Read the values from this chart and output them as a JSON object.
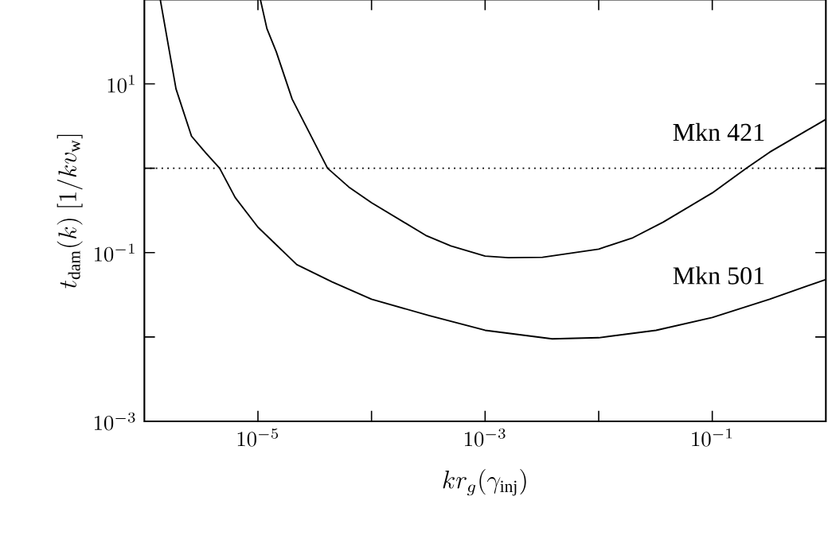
{
  "chart_data": {
    "type": "line",
    "xlabel": "kr_g(\\gamma_{\\rm inj})",
    "ylabel": "t_{\\rm dam}(k)\\ [1/kv_{\\rm w}]",
    "log": "xy",
    "xlim": [
      1e-06,
      1
    ],
    "ylim": [
      0.001,
      100
    ],
    "xticks": [
      {
        "value": 1e-05,
        "label": "10^{-5}"
      },
      {
        "value": 0.0001,
        "label": null
      },
      {
        "value": 0.001,
        "label": "10^{-3}"
      },
      {
        "value": 0.01,
        "label": null
      },
      {
        "value": 0.1,
        "label": "10^{-1}"
      }
    ],
    "yticks": [
      {
        "value": 0.001,
        "label": "10^{-3}"
      },
      {
        "value": 0.01,
        "label": null
      },
      {
        "value": 0.1,
        "label": "10^{-1}"
      },
      {
        "value": 1,
        "label": null
      },
      {
        "value": 10,
        "label": "10^{1}"
      }
    ],
    "series": [
      {
        "name": "Mkn 421",
        "color": "#000000",
        "x": [
          1.05e-05,
          1.2e-05,
          1.45e-05,
          2e-05,
          4.1e-05,
          6.3e-05,
          0.0001,
          0.0003,
          0.0005,
          0.001,
          0.0016,
          0.0032,
          0.01,
          0.02,
          0.037,
          0.1,
          0.2,
          0.32,
          1
        ],
        "values": [
          100,
          45,
          24,
          6.6,
          1,
          0.6,
          0.39,
          0.16,
          0.12,
          0.091,
          0.087,
          0.088,
          0.11,
          0.15,
          0.23,
          0.51,
          1,
          1.55,
          3.8
        ]
      },
      {
        "name": "Mkn 501",
        "color": "#000000",
        "x": [
          1.38e-06,
          1.9e-06,
          2.6e-06,
          3.5e-06,
          4.6e-06,
          6.3e-06,
          1e-05,
          2.2e-05,
          4.5e-05,
          0.0001,
          0.00032,
          0.001,
          0.0039,
          0.01,
          0.032,
          0.1,
          0.32,
          1
        ],
        "values": [
          100,
          8.7,
          2.4,
          1.5,
          1,
          0.45,
          0.2,
          0.072,
          0.045,
          0.028,
          0.018,
          0.012,
          0.0095,
          0.0098,
          0.012,
          0.017,
          0.028,
          0.048
        ]
      }
    ],
    "ref_lines": [
      {
        "axis": "y",
        "value": 1,
        "line_style": "dotted",
        "color": "#000000"
      }
    ],
    "grid": false,
    "marker": "none",
    "line_style": "solid"
  }
}
